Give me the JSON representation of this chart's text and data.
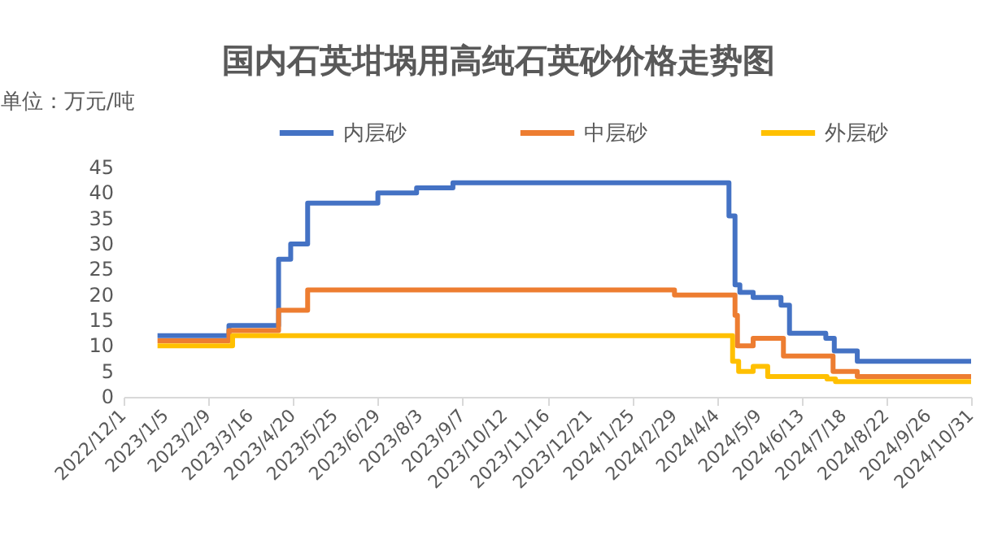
{
  "chart_data": {
    "type": "step",
    "title": "国内石英坩埚用高纯石英砂价格走势图",
    "ylabel": "单位：万元/吨",
    "series": [
      {
        "name": "内层砂",
        "color": "#4472c4",
        "x": [
          "2022-12-29",
          "2023-02-26",
          "2023-04-08",
          "2023-04-18",
          "2023-05-02",
          "2023-06-29",
          "2023-07-31",
          "2023-08-30",
          "2024-04-14",
          "2024-04-19",
          "2024-04-23",
          "2024-05-04",
          "2024-05-27",
          "2024-06-03",
          "2024-07-03",
          "2024-07-10",
          "2024-07-29",
          "2024-10-31"
        ],
        "values": [
          12,
          14,
          27,
          30,
          38,
          40,
          41,
          42,
          35.5,
          22,
          20.5,
          19.5,
          18,
          12.5,
          11.5,
          9,
          7,
          7
        ]
      },
      {
        "name": "中层砂",
        "color": "#ed7d31",
        "x": [
          "2022-12-29",
          "2023-02-26",
          "2023-04-08",
          "2023-05-02",
          "2024-02-29",
          "2024-04-19",
          "2024-04-21",
          "2024-05-04",
          "2024-05-29",
          "2024-07-09",
          "2024-07-29",
          "2024-10-31"
        ],
        "values": [
          11,
          13,
          17,
          21,
          20,
          16,
          10,
          11.5,
          8,
          5,
          4,
          4
        ]
      },
      {
        "name": "外层砂",
        "color": "#ffc000",
        "x": [
          "2022-12-29",
          "2023-03-01",
          "2024-04-17",
          "2024-04-22",
          "2024-05-04",
          "2024-05-16",
          "2024-07-04",
          "2024-07-11",
          "2024-10-31"
        ],
        "values": [
          10,
          12,
          7,
          5,
          6,
          4,
          3.5,
          3,
          3
        ]
      }
    ],
    "xlim": [
      "2022-12-01",
      "2024-10-31"
    ],
    "xticks": [
      {
        "value": "2022-12-01",
        "label": "2022/12/1"
      },
      {
        "value": "2023-01-05",
        "label": "2023/1/5"
      },
      {
        "value": "2023-02-09",
        "label": "2023/2/9"
      },
      {
        "value": "2023-03-16",
        "label": "2023/3/16"
      },
      {
        "value": "2023-04-20",
        "label": "2023/4/20"
      },
      {
        "value": "2023-05-25",
        "label": "2023/5/25"
      },
      {
        "value": "2023-06-29",
        "label": "2023/6/29"
      },
      {
        "value": "2023-08-03",
        "label": "2023/8/3"
      },
      {
        "value": "2023-09-07",
        "label": "2023/9/7"
      },
      {
        "value": "2023-10-12",
        "label": "2023/10/12"
      },
      {
        "value": "2023-11-16",
        "label": "2023/11/16"
      },
      {
        "value": "2023-12-21",
        "label": "2023/12/21"
      },
      {
        "value": "2024-01-25",
        "label": "2024/1/25"
      },
      {
        "value": "2024-02-29",
        "label": "2024/2/29"
      },
      {
        "value": "2024-04-04",
        "label": "2024/4/4"
      },
      {
        "value": "2024-05-09",
        "label": "2024/5/9"
      },
      {
        "value": "2024-06-13",
        "label": "2024/6/13"
      },
      {
        "value": "2024-07-18",
        "label": "2024/7/18"
      },
      {
        "value": "2024-08-22",
        "label": "2024/8/22"
      },
      {
        "value": "2024-09-26",
        "label": "2024/9/26"
      },
      {
        "value": "2024-10-31",
        "label": "2024/10/31"
      }
    ],
    "ylim": [
      0,
      45
    ],
    "yticks": [
      0,
      5,
      10,
      15,
      20,
      25,
      30,
      35,
      40,
      45
    ],
    "grid": false,
    "legend": "top",
    "marker": "none"
  }
}
